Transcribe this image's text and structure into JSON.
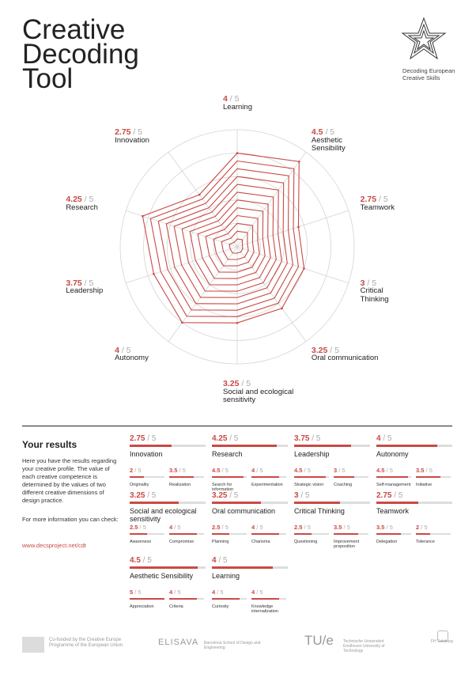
{
  "title_lines": [
    "Creative",
    "Decoding",
    "Tool"
  ],
  "logo_text": [
    "Decoding European",
    "Creative Skills"
  ],
  "max_label": "/ 5",
  "radar": [
    {
      "score": "4",
      "value": 4,
      "label": "Learning"
    },
    {
      "score": "4.5",
      "value": 4.5,
      "label": "Aesthetic Sensibility"
    },
    {
      "score": "2.75",
      "value": 2.75,
      "label": "Teamwork"
    },
    {
      "score": "3",
      "value": 3,
      "label": "Critical Thinking"
    },
    {
      "score": "3.25",
      "value": 3.25,
      "label": "Oral communication"
    },
    {
      "score": "3.25",
      "value": 3.25,
      "label": "Social and ecological sensitivity"
    },
    {
      "score": "4",
      "value": 4,
      "label": "Autonomy"
    },
    {
      "score": "3.75",
      "value": 3.75,
      "label": "Leadership"
    },
    {
      "score": "4.25",
      "value": 4.25,
      "label": "Research"
    },
    {
      "score": "2.75",
      "value": 2.75,
      "label": "Innovation"
    }
  ],
  "results": {
    "heading": "Your results",
    "intro": "Here you have the results regarding your creative profile. The value of each creative competence is determined by the values of two different creative dimensions of design practice.",
    "more": "For more information you can check:",
    "link": "www.decsproject.net/cdt"
  },
  "competences": [
    {
      "score": "2.75",
      "value": 2.75,
      "name": "Innovation",
      "subs": [
        {
          "score": "2",
          "value": 2,
          "name": "Originality"
        },
        {
          "score": "3.5",
          "value": 3.5,
          "name": "Realization"
        }
      ]
    },
    {
      "score": "4.25",
      "value": 4.25,
      "name": "Research",
      "subs": [
        {
          "score": "4.5",
          "value": 4.5,
          "name": "Search for information"
        },
        {
          "score": "4",
          "value": 4,
          "name": "Experimentation"
        }
      ]
    },
    {
      "score": "3.75",
      "value": 3.75,
      "name": "Leadership",
      "subs": [
        {
          "score": "4.5",
          "value": 4.5,
          "name": "Strategic vision"
        },
        {
          "score": "3",
          "value": 3,
          "name": "Coaching"
        }
      ]
    },
    {
      "score": "4",
      "value": 4,
      "name": "Autonomy",
      "subs": [
        {
          "score": "4.5",
          "value": 4.5,
          "name": "Self-management"
        },
        {
          "score": "3.5",
          "value": 3.5,
          "name": "Initiative"
        }
      ]
    },
    {
      "score": "3.25",
      "value": 3.25,
      "name": "Social and ecological sensitivity",
      "subs": [
        {
          "score": "2.5",
          "value": 2.5,
          "name": "Awareness"
        },
        {
          "score": "4",
          "value": 4,
          "name": "Compromise"
        }
      ]
    },
    {
      "score": "3.25",
      "value": 3.25,
      "name": "Oral communication",
      "subs": [
        {
          "score": "2.5",
          "value": 2.5,
          "name": "Planning"
        },
        {
          "score": "4",
          "value": 4,
          "name": "Charisma"
        }
      ]
    },
    {
      "score": "3",
      "value": 3,
      "name": "Critical Thinking",
      "subs": [
        {
          "score": "2.5",
          "value": 2.5,
          "name": "Questioning"
        },
        {
          "score": "3.5",
          "value": 3.5,
          "name": "Improvement proposition"
        }
      ]
    },
    {
      "score": "2.75",
      "value": 2.75,
      "name": "Teamwork",
      "subs": [
        {
          "score": "3.5",
          "value": 3.5,
          "name": "Delegation"
        },
        {
          "score": "2",
          "value": 2,
          "name": "Tolerance"
        }
      ]
    },
    {
      "score": "4.5",
      "value": 4.5,
      "name": "Aesthetic Sensibility",
      "subs": [
        {
          "score": "5",
          "value": 5,
          "name": "Appreciation"
        },
        {
          "score": "4",
          "value": 4,
          "name": "Criteria"
        }
      ]
    },
    {
      "score": "4",
      "value": 4,
      "name": "Learning",
      "subs": [
        {
          "score": "4",
          "value": 4,
          "name": "Curiosity"
        },
        {
          "score": "4",
          "value": 4,
          "name": "Knowledge internalization"
        }
      ]
    }
  ],
  "footer": {
    "eu": "Co-funded by the Creative Europe Programme of the European Union",
    "elisava": "ELISAVA",
    "elisava_sub": "Barcelona School of Design and Engineering",
    "tue": "TU/e",
    "tue_sub": "Technische Universiteit Eindhoven University of Technology",
    "fh": "FH Salzburg"
  },
  "colors": {
    "accent": "#c94a45",
    "grid": "#cccccc",
    "text": "#222222"
  }
}
